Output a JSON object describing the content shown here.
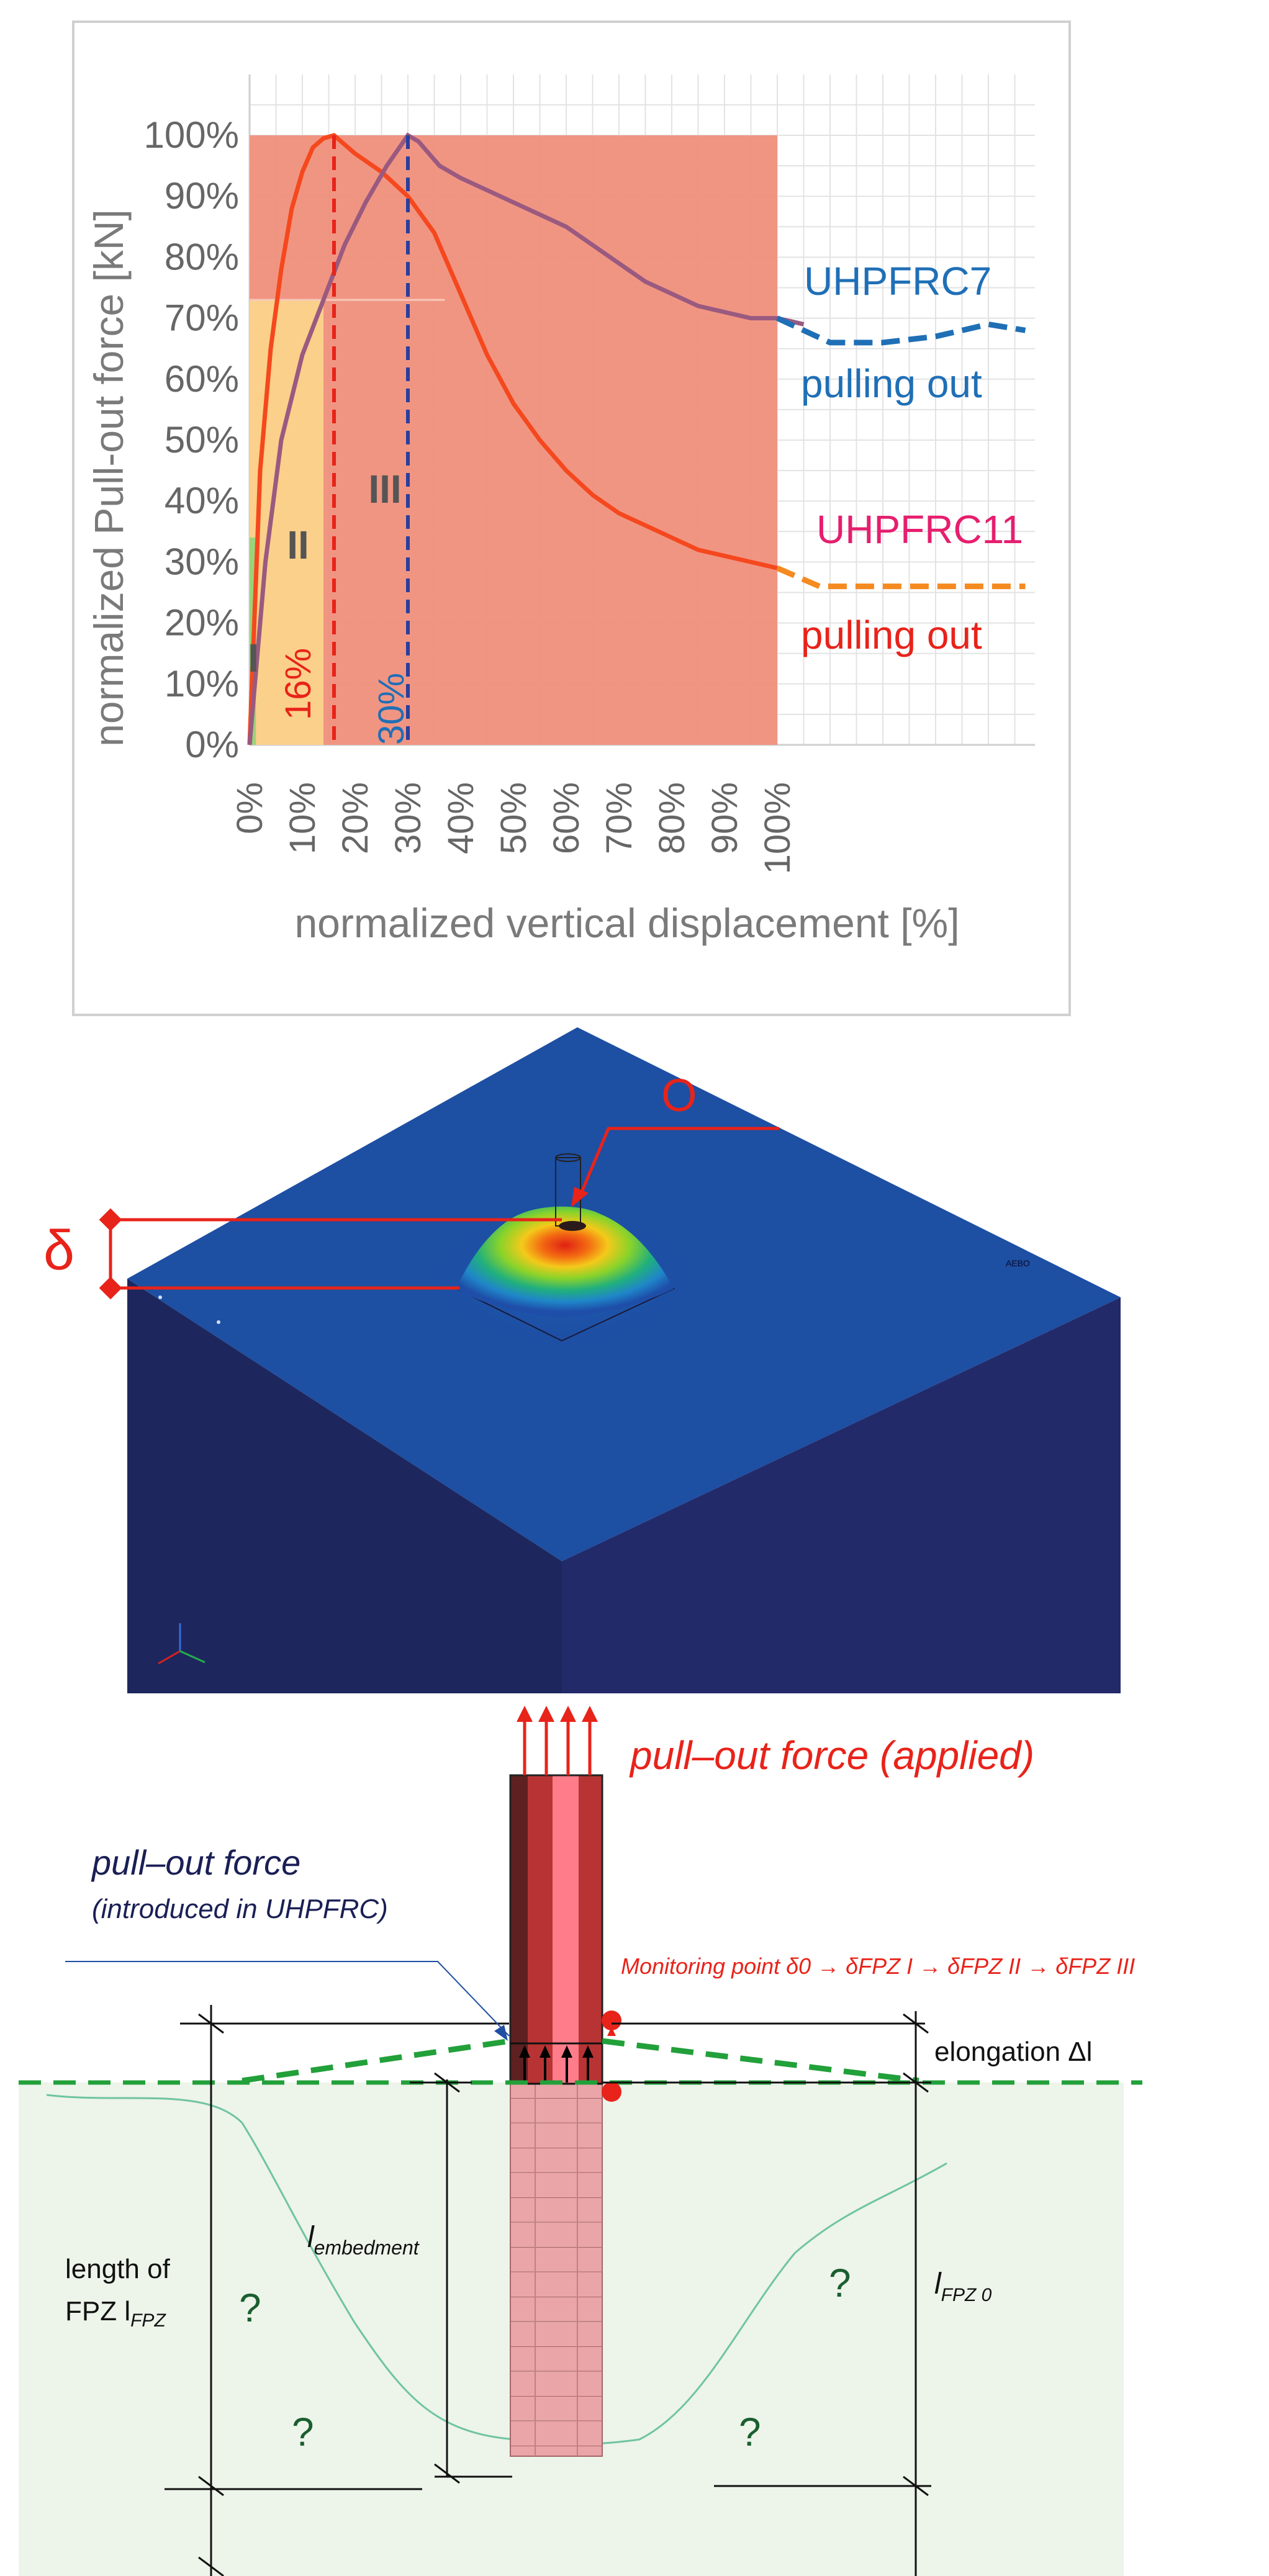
{
  "chart": {
    "ylabel": "normalized Pull-out force [kN]",
    "xlabel": "normalized vertical displacement [%]",
    "y_ticks": [
      "0%",
      "10%",
      "20%",
      "30%",
      "40%",
      "50%",
      "60%",
      "70%",
      "80%",
      "90%",
      "100%"
    ],
    "x_ticks": [
      "0%",
      "10%",
      "20%",
      "30%",
      "40%",
      "50%",
      "60%",
      "70%",
      "80%",
      "90%",
      "100%"
    ],
    "zones": [
      "I",
      "II",
      "III"
    ],
    "peak_labels": [
      "16%",
      "30%"
    ],
    "series_labels": [
      "UHPFRC7",
      "UHPFRC11"
    ],
    "pulling_out": [
      "pulling out",
      "pulling out"
    ],
    "colors": {
      "uhpfrc7": "#1f6fb6",
      "uhpfrc11": "#f5481e",
      "purple": "#9a5a80",
      "zone_red": "#f08f7c",
      "zone_yellow": "#fbd08a"
    }
  },
  "chart_data": {
    "type": "line",
    "xlabel": "normalized vertical displacement [%]",
    "ylabel": "normalized Pull-out force [kN]",
    "xlim": [
      0,
      100
    ],
    "ylim": [
      0,
      100
    ],
    "grid": true,
    "series": [
      {
        "name": "UHPFRC11",
        "x": [
          0,
          2,
          4,
          6,
          8,
          10,
          12,
          14,
          16,
          20,
          25,
          30,
          35,
          40,
          45,
          50,
          55,
          60,
          65,
          70,
          75,
          80,
          85,
          90,
          95,
          100
        ],
        "y": [
          0,
          45,
          65,
          78,
          88,
          94,
          98,
          99.5,
          100,
          97,
          94,
          90,
          84,
          74,
          64,
          56,
          50,
          45,
          41,
          38,
          36,
          34,
          32,
          31,
          30,
          29
        ]
      },
      {
        "name": "UHPFRC7",
        "x": [
          0,
          3,
          6,
          10,
          14,
          18,
          22,
          26,
          30,
          32,
          36,
          40,
          45,
          50,
          55,
          60,
          65,
          70,
          75,
          80,
          85,
          90,
          95,
          100,
          105
        ],
        "y": [
          0,
          30,
          50,
          64,
          73,
          82,
          89,
          95,
          100,
          99,
          95,
          93,
          91,
          89,
          87,
          85,
          82,
          79,
          76,
          74,
          72,
          71,
          70,
          70,
          69
        ]
      }
    ],
    "pulling_out_dashed": {
      "UHPFRC7": {
        "x": [
          100,
          110,
          120,
          130,
          140,
          147
        ],
        "y": [
          70,
          66,
          66,
          67,
          69,
          68
        ]
      },
      "UHPFRC11": {
        "x": [
          100,
          108,
          120,
          130,
          140,
          147
        ],
        "y": [
          29,
          26,
          26,
          26,
          26,
          26
        ]
      }
    },
    "zones": [
      {
        "label": "I",
        "x_range": [
          0,
          1
        ]
      },
      {
        "label": "II",
        "x_range": [
          1,
          14
        ]
      },
      {
        "label": "III",
        "x_range": [
          14,
          100
        ]
      }
    ],
    "peaks": [
      {
        "series": "UHPFRC11",
        "x": 16
      },
      {
        "series": "UHPFRC7",
        "x": 30
      }
    ]
  },
  "model": {
    "delta": "δ",
    "o_label": "O",
    "tiny_text": "AEBO"
  },
  "diagram": {
    "pull_applied": "pull–out force (applied)",
    "pull_introduced": "pull–out force",
    "introduced_sub": "(introduced in UHPFRC)",
    "monitoring": "Monitoring point δ0 → δFPZ I → δFPZ II → δFPZ III",
    "elongation": "elongation Δl",
    "length_fpz_1": "length of",
    "length_fpz_2": "FPZ l",
    "length_fpz_sub": "FPZ",
    "l_embed": "l",
    "l_embed_sub": "embedment",
    "l_fpz0": "l",
    "l_fpz0_sub": "FPZ 0",
    "question": "?"
  }
}
